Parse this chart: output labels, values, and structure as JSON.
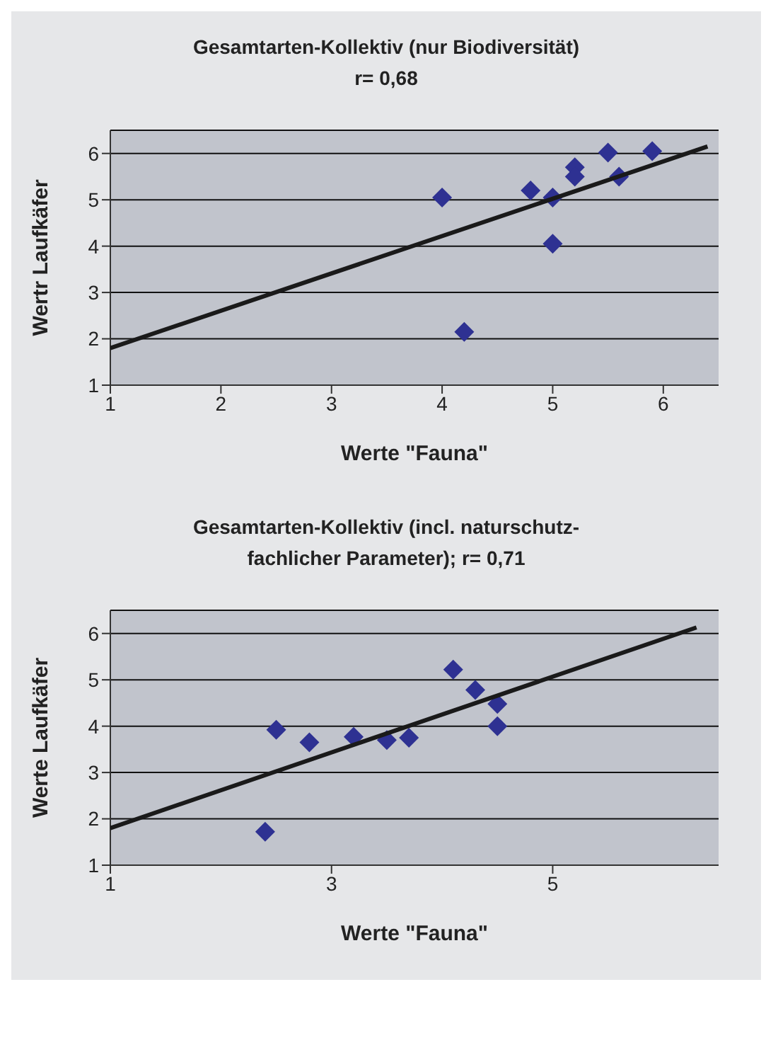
{
  "chart_data": [
    {
      "type": "scatter",
      "title": "Gesamtarten-Kollektiv (nur Biodiversität)",
      "subtitle": "r= 0,68",
      "xlabel": "Werte \"Fauna\"",
      "ylabel": "Wertr Laufkäfer",
      "xlim": [
        1,
        6.5
      ],
      "xticks": [
        1,
        2,
        3,
        4,
        5,
        6
      ],
      "ylim": [
        1,
        6.5
      ],
      "yticks": [
        1,
        2,
        3,
        4,
        5,
        6
      ],
      "grid": "y",
      "legend": false,
      "marker": "diamond",
      "series": [
        {
          "color": "#2e3192",
          "x": [
            4,
            4.2,
            4.8,
            5,
            5,
            5.2,
            5.2,
            5.5,
            5.6,
            5.9
          ],
          "values": [
            5.05,
            2.15,
            5.2,
            5.05,
            4.05,
            5.7,
            5.5,
            6.02,
            5.5,
            6.05
          ]
        },
        {
          "type": "line",
          "marker": "none",
          "color": "#1a1a1a",
          "x": [
            1,
            6.4
          ],
          "values": [
            1.8,
            6.15
          ]
        }
      ]
    },
    {
      "type": "scatter",
      "title": "Gesamtarten-Kollektiv (incl. naturschutz-fachlicher Parameter); r= 0,71",
      "xlabel": "Werte \"Fauna\"",
      "ylabel": "Werte Laufkäfer",
      "xlim": [
        1,
        6.5
      ],
      "xticks": [
        1,
        3,
        5
      ],
      "ylim": [
        1,
        6.5
      ],
      "yticks": [
        1,
        2,
        3,
        4,
        5,
        6
      ],
      "grid": "y",
      "legend": false,
      "marker": "diamond",
      "series": [
        {
          "color": "#2e3192",
          "x": [
            2.4,
            2.5,
            2.8,
            3.2,
            3.5,
            3.7,
            4.1,
            4.3,
            4.5,
            4.5
          ],
          "values": [
            1.72,
            3.92,
            3.65,
            3.77,
            3.7,
            3.75,
            5.22,
            4.78,
            4.48,
            4.0
          ]
        },
        {
          "type": "line",
          "marker": "none",
          "color": "#1a1a1a",
          "x": [
            1,
            6.3
          ],
          "values": [
            1.8,
            6.13
          ]
        }
      ]
    }
  ]
}
